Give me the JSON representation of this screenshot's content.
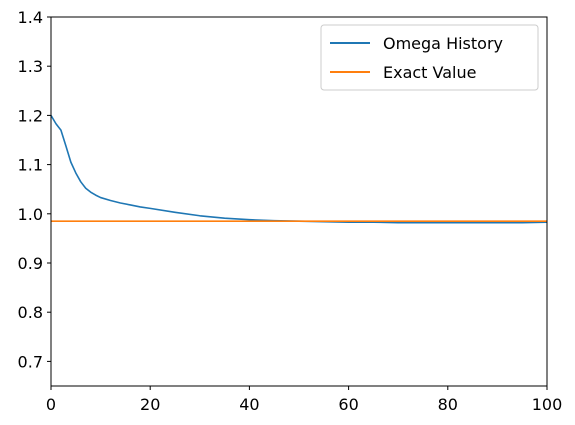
{
  "chart_data": {
    "type": "line",
    "xlim": [
      0,
      100
    ],
    "ylim": [
      0.65,
      1.4
    ],
    "x_ticks": [
      0,
      20,
      40,
      60,
      80,
      100
    ],
    "x_tick_labels": [
      "0",
      "20",
      "40",
      "60",
      "80",
      "100"
    ],
    "y_ticks": [
      0.7,
      0.8,
      0.9,
      1.0,
      1.1,
      1.2,
      1.3,
      1.4
    ],
    "y_tick_labels": [
      "0.7",
      "0.8",
      "0.9",
      "1.0",
      "1.1",
      "1.2",
      "1.3",
      "1.4"
    ],
    "grid": false,
    "legend_position": "top-right",
    "legend": [
      "Omega History",
      "Exact Value"
    ],
    "series": [
      {
        "name": "Omega History",
        "color": "#1f77b4",
        "x": [
          0,
          1,
          2,
          3,
          4,
          5,
          6,
          7,
          8,
          9,
          10,
          12,
          14,
          16,
          18,
          20,
          25,
          30,
          35,
          40,
          45,
          50,
          55,
          60,
          65,
          70,
          75,
          80,
          85,
          90,
          95,
          100
        ],
        "y": [
          1.2,
          1.183,
          1.17,
          1.138,
          1.105,
          1.083,
          1.065,
          1.052,
          1.044,
          1.038,
          1.033,
          1.027,
          1.022,
          1.018,
          1.014,
          1.011,
          1.003,
          0.996,
          0.991,
          0.988,
          0.986,
          0.985,
          0.984,
          0.983,
          0.983,
          0.982,
          0.982,
          0.982,
          0.982,
          0.982,
          0.982,
          0.983
        ]
      },
      {
        "name": "Exact Value",
        "color": "#ff7f0e",
        "x": [
          0,
          100
        ],
        "y": [
          0.985,
          0.985
        ]
      }
    ]
  }
}
